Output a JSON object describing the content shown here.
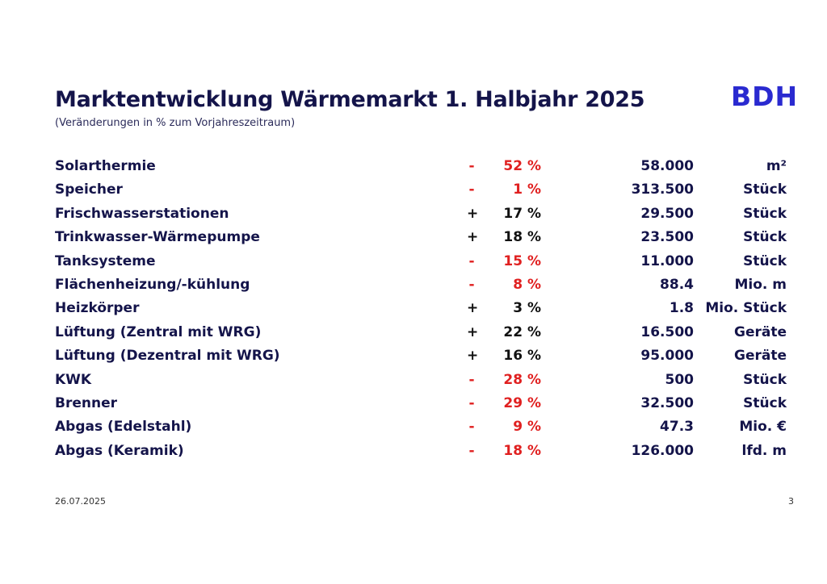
{
  "header": {
    "title": "Marktentwicklung Wärmemarkt 1. Halbjahr 2025",
    "subtitle": "(Veränderungen in % zum Vorjahreszeitraum)",
    "logo": "BDH"
  },
  "colors": {
    "title": "#14144a",
    "negative": "#e02020",
    "positive": "#111111",
    "logo": "#2a2ad0"
  },
  "rows": [
    {
      "label": "Solarthermie",
      "sign": "-",
      "pct": "52 %",
      "value": "58.000",
      "unit": "m²",
      "trend": "neg"
    },
    {
      "label": "Speicher",
      "sign": "-",
      "pct": "1 %",
      "value": "313.500",
      "unit": "Stück",
      "trend": "neg"
    },
    {
      "label": "Frischwasserstationen",
      "sign": "+",
      "pct": "17 %",
      "value": "29.500",
      "unit": "Stück",
      "trend": "pos"
    },
    {
      "label": "Trinkwasser-Wärmepumpe",
      "sign": "+",
      "pct": "18 %",
      "value": "23.500",
      "unit": "Stück",
      "trend": "pos"
    },
    {
      "label": "Tanksysteme",
      "sign": "-",
      "pct": "15 %",
      "value": "11.000",
      "unit": "Stück",
      "trend": "neg"
    },
    {
      "label": "Flächenheizung/-kühlung",
      "sign": "-",
      "pct": "8 %",
      "value": "88.4",
      "unit": "Mio. m",
      "trend": "neg"
    },
    {
      "label": "Heizkörper",
      "sign": "+",
      "pct": "3 %",
      "value": "1.8",
      "unit": "Mio. Stück",
      "trend": "pos"
    },
    {
      "label": "Lüftung (Zentral mit WRG)",
      "sign": "+",
      "pct": "22 %",
      "value": "16.500",
      "unit": "Geräte",
      "trend": "pos"
    },
    {
      "label": "Lüftung (Dezentral mit WRG)",
      "sign": "+",
      "pct": "16 %",
      "value": "95.000",
      "unit": "Geräte",
      "trend": "pos"
    },
    {
      "label": "KWK",
      "sign": "-",
      "pct": "28 %",
      "value": "500",
      "unit": "Stück",
      "trend": "neg"
    },
    {
      "label": "Brenner",
      "sign": "-",
      "pct": "29 %",
      "value": "32.500",
      "unit": "Stück",
      "trend": "neg"
    },
    {
      "label": "Abgas (Edelstahl)",
      "sign": "-",
      "pct": "9 %",
      "value": "47.3",
      "unit": "Mio. €",
      "trend": "neg"
    },
    {
      "label": "Abgas (Keramik)",
      "sign": "-",
      "pct": "18 %",
      "value": "126.000",
      "unit": "lfd. m",
      "trend": "neg"
    }
  ],
  "footer": {
    "date": "26.07.2025",
    "page": "3"
  }
}
